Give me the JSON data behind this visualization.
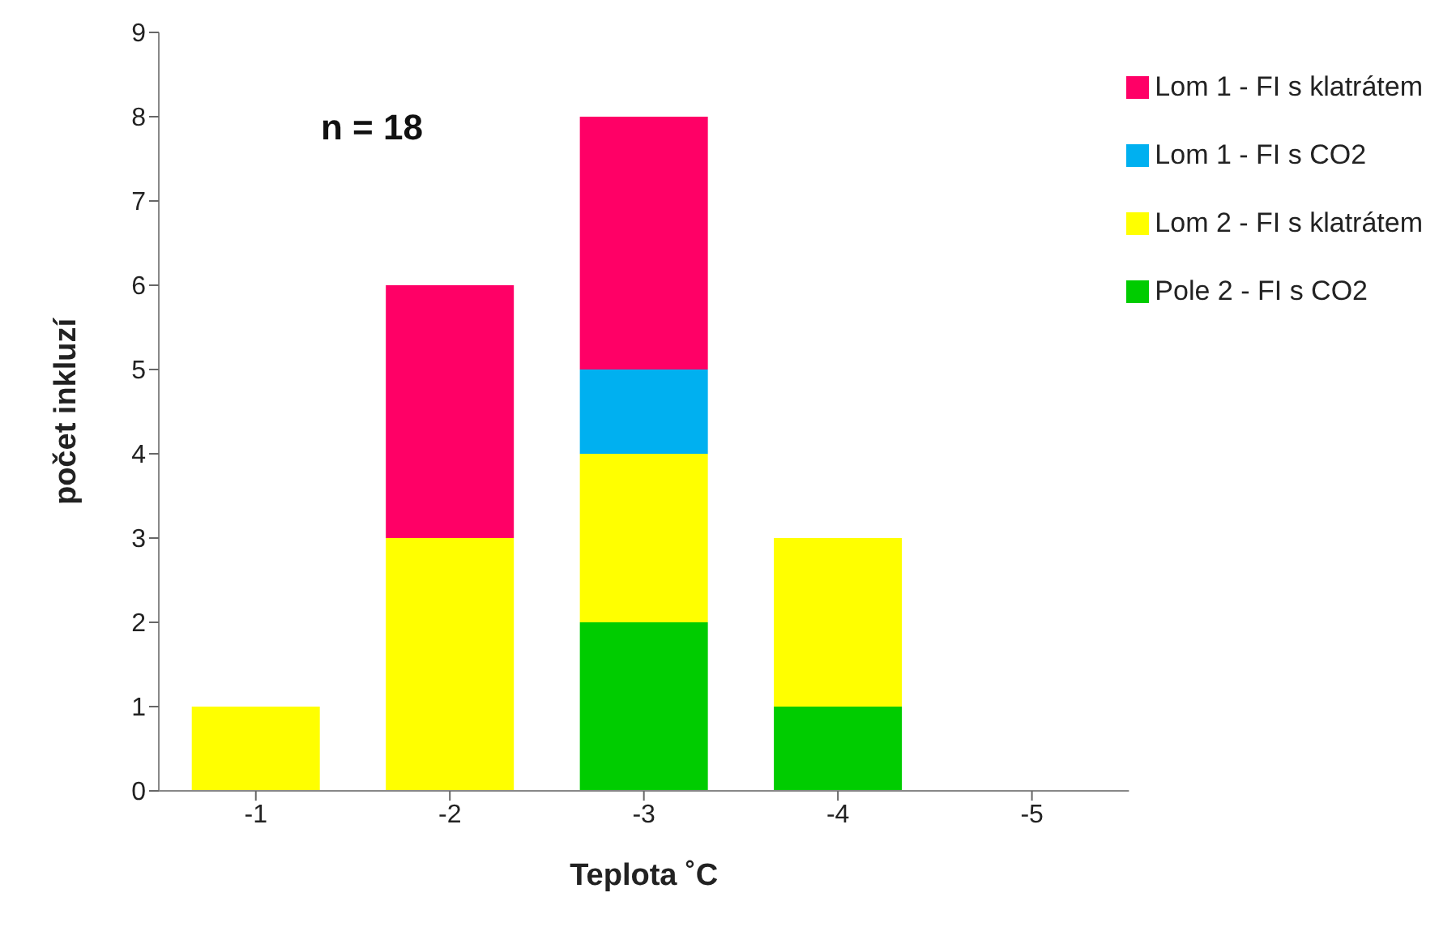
{
  "chart_data": {
    "type": "bar",
    "xlabel": "Teplota ˚C",
    "ylabel": "počet inkluzí",
    "categories": [
      "-1",
      "-2",
      "-3",
      "-4",
      "-5"
    ],
    "stacked": true,
    "series": [
      {
        "name": "Pole 2 - FI s CO2",
        "color": "#00cc00",
        "values": [
          0,
          0,
          2,
          1,
          0
        ]
      },
      {
        "name": "Lom 2 - FI s klatrátem",
        "color": "#ffff00",
        "values": [
          1,
          3,
          2,
          2,
          0
        ]
      },
      {
        "name": "Lom 1 - FI s CO2",
        "color": "#00b0f0",
        "values": [
          0,
          0,
          1,
          0,
          0
        ]
      },
      {
        "name": "Lom 1 - FI s klatrátem",
        "color": "#ff0066",
        "values": [
          0,
          3,
          3,
          0,
          0
        ]
      }
    ],
    "ylim": [
      0,
      9
    ],
    "yticks": [
      0,
      1,
      2,
      3,
      4,
      5,
      6,
      7,
      8,
      9
    ],
    "grid": false,
    "legend": "top right",
    "annotations": [
      "n = 18"
    ]
  }
}
